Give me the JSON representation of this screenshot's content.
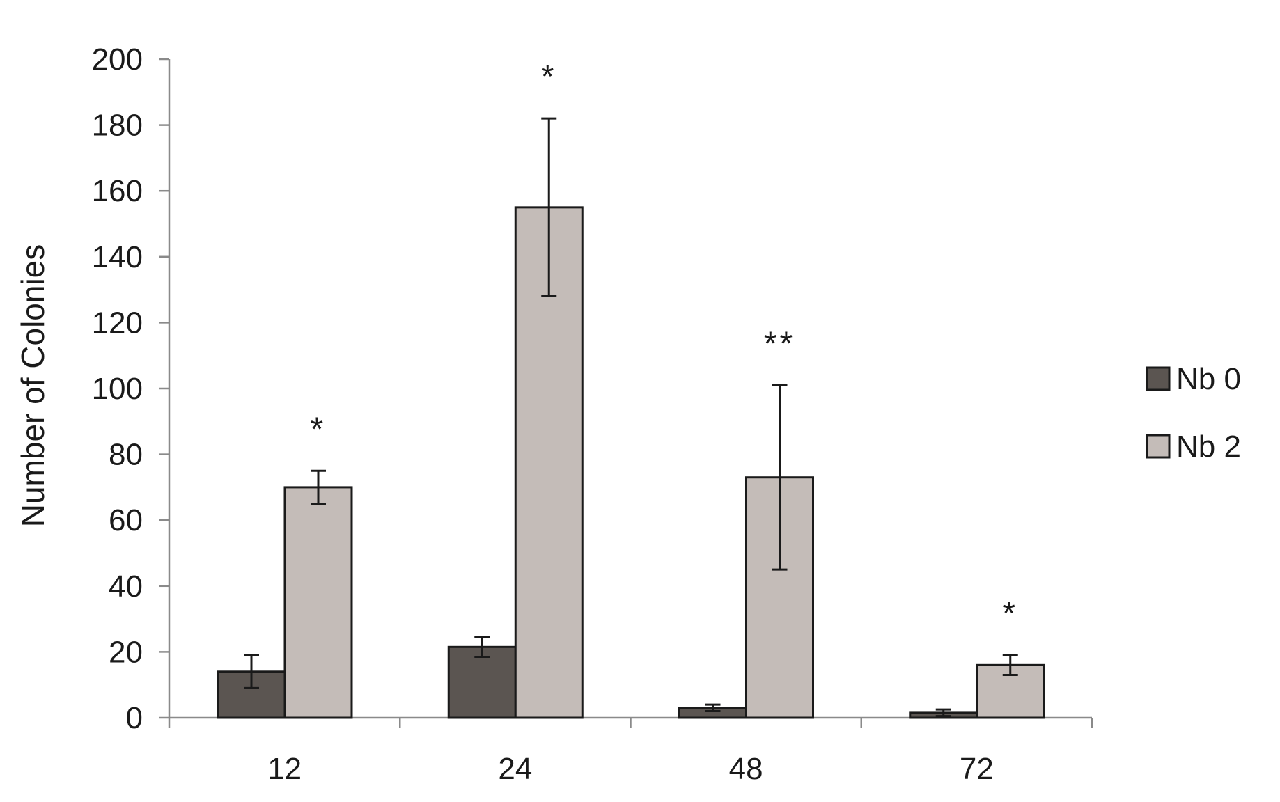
{
  "chart_data": {
    "type": "bar",
    "title": "",
    "xlabel": "",
    "ylabel": "Number of Colonies",
    "ylim": [
      0,
      200
    ],
    "yticks": [
      0,
      20,
      40,
      60,
      80,
      100,
      120,
      140,
      160,
      180,
      200
    ],
    "categories": [
      "12",
      "24",
      "48",
      "72"
    ],
    "series": [
      {
        "name": "Nb 0",
        "color": "#5b5551",
        "values": [
          14,
          21.5,
          3,
          1.5
        ],
        "error": [
          5,
          3,
          1,
          1
        ]
      },
      {
        "name": "Nb 2",
        "color": "#c4bcb8",
        "values": [
          70,
          155,
          73,
          16
        ],
        "error": [
          5,
          27,
          28,
          3
        ]
      }
    ],
    "annotations": [
      "*",
      "*",
      "**",
      "*"
    ],
    "legend_position": "right",
    "grid": false
  }
}
